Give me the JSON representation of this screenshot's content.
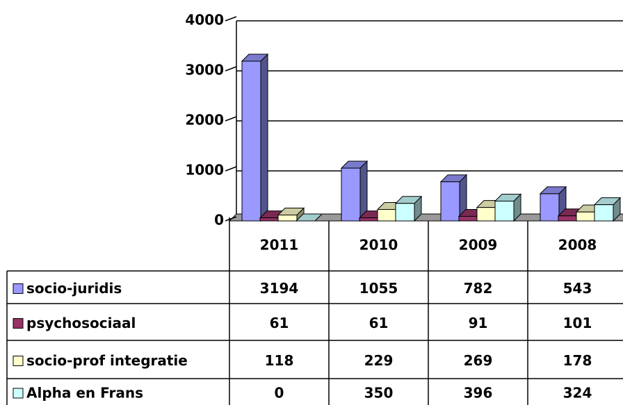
{
  "chart_data": {
    "type": "bar",
    "categories": [
      "2011",
      "2010",
      "2009",
      "2008"
    ],
    "series": [
      {
        "name": "socio-juridis",
        "color": "#9999ff",
        "values": [
          3194,
          1055,
          782,
          543
        ]
      },
      {
        "name": "psychosociaal",
        "color": "#993366",
        "values": [
          61,
          61,
          91,
          101
        ]
      },
      {
        "name": "socio-prof integratie",
        "color": "#ffffcc",
        "values": [
          118,
          229,
          269,
          178
        ]
      },
      {
        "name": "Alpha en Frans",
        "color": "#ccffff",
        "values": [
          0,
          350,
          396,
          324
        ]
      }
    ],
    "ylim": [
      0,
      4000
    ],
    "yticks": [
      0,
      1000,
      2000,
      3000,
      4000
    ],
    "grid": true
  }
}
